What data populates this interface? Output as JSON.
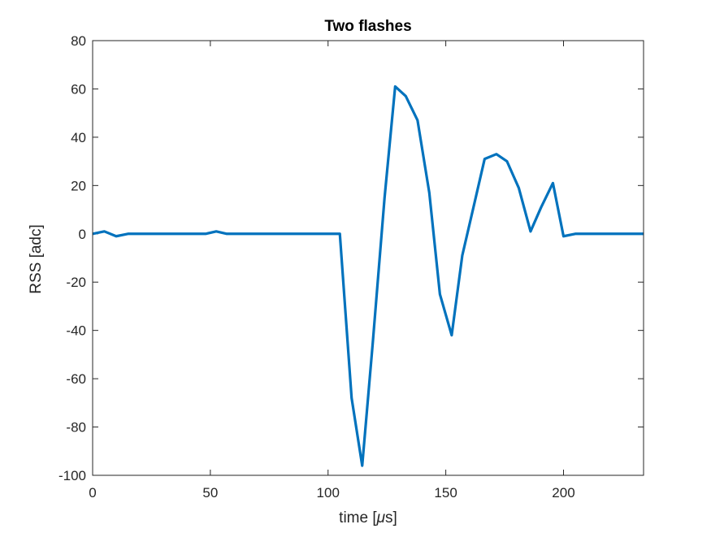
{
  "chart_data": {
    "type": "line",
    "title": "Two flashes",
    "xlabel_prefix": "time [",
    "xlabel_mu": "μ",
    "xlabel_suffix": "s]",
    "ylabel": "RSS [adc]",
    "xlim": [
      0,
      234
    ],
    "ylim": [
      -100,
      80
    ],
    "xticks": [
      0,
      50,
      100,
      150,
      200
    ],
    "xtick_labels": [
      "0",
      "50",
      "100",
      "150",
      "200"
    ],
    "yticks": [
      80,
      60,
      40,
      20,
      0,
      -20,
      -40,
      -60,
      -80,
      -100
    ],
    "ytick_labels": [
      "80",
      "60",
      "40",
      "20",
      "0",
      "-20",
      "-40",
      "-60",
      "-80",
      "-100"
    ],
    "grid": false,
    "line_color": "#0072BD",
    "series": [
      {
        "x": [
          0,
          5,
          10,
          15,
          48,
          52.5,
          57,
          105,
          110,
          114.5,
          119,
          124,
          128.5,
          133,
          138,
          143,
          147.5,
          152.5,
          157,
          162,
          166.5,
          171.5,
          176,
          181,
          186,
          190.5,
          195.5,
          200,
          205,
          234
        ],
        "y": [
          0,
          1,
          -1,
          0,
          0,
          1,
          0,
          0,
          -68,
          -96,
          -45,
          15,
          61,
          57,
          47,
          17,
          -25,
          -42,
          -9,
          12,
          31,
          33,
          30,
          19,
          1,
          11,
          21,
          -1,
          0,
          0
        ]
      }
    ]
  }
}
